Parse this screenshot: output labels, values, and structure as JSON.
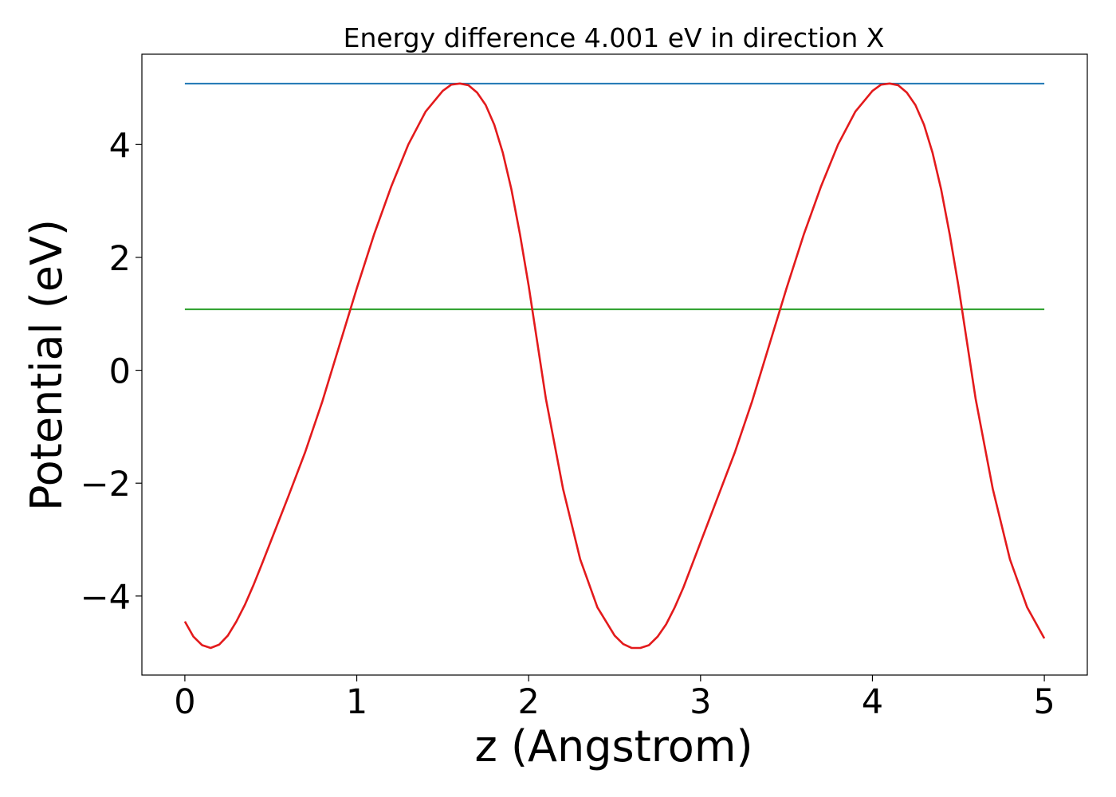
{
  "chart_data": {
    "type": "line",
    "title": "Energy difference 4.001 eV in direction X",
    "xlabel": "z (Angstrom)",
    "ylabel": "Potential (eV)",
    "xlim": [
      -0.25,
      5.25
    ],
    "ylim": [
      -5.4,
      5.6
    ],
    "xticks": [
      0,
      1,
      2,
      3,
      4,
      5
    ],
    "xtick_labels": [
      "0",
      "1",
      "2",
      "3",
      "4",
      "5"
    ],
    "yticks": [
      -4,
      -2,
      0,
      2,
      4
    ],
    "ytick_labels": [
      "−4",
      "−2",
      "0",
      "2",
      "4"
    ],
    "grid": false,
    "colors": {
      "potential": "#e31a1c",
      "max_line": "#1f77b4",
      "mean_line": "#2ca02c"
    },
    "series": [
      {
        "role": "potential",
        "x": [
          0,
          0.05,
          0.1,
          0.15,
          0.2,
          0.25,
          0.3,
          0.35,
          0.4,
          0.45,
          0.5,
          0.6,
          0.7,
          0.8,
          0.9,
          1.0,
          1.1,
          1.2,
          1.3,
          1.4,
          1.5,
          1.55,
          1.6,
          1.65,
          1.7,
          1.75,
          1.8,
          1.85,
          1.9,
          1.95,
          2.0,
          2.05,
          2.1,
          2.2,
          2.3,
          2.4,
          2.5,
          2.55,
          2.6,
          2.65,
          2.7,
          2.75,
          2.8,
          2.85,
          2.9,
          3.0,
          3.1,
          3.2,
          3.3,
          3.4,
          3.5,
          3.6,
          3.7,
          3.8,
          3.9,
          4.0,
          4.05,
          4.1,
          4.15,
          4.2,
          4.25,
          4.3,
          4.35,
          4.4,
          4.45,
          4.5,
          4.55,
          4.6,
          4.7,
          4.8,
          4.9,
          5.0
        ],
        "y": [
          -4.45,
          -4.72,
          -4.87,
          -4.92,
          -4.86,
          -4.7,
          -4.45,
          -4.15,
          -3.8,
          -3.42,
          -3.03,
          -2.25,
          -1.45,
          -0.55,
          0.45,
          1.45,
          2.4,
          3.25,
          4.0,
          4.58,
          4.95,
          5.06,
          5.08,
          5.05,
          4.92,
          4.7,
          4.35,
          3.85,
          3.2,
          2.4,
          1.5,
          0.5,
          -0.5,
          -2.1,
          -3.35,
          -4.2,
          -4.7,
          -4.85,
          -4.92,
          -4.92,
          -4.87,
          -4.72,
          -4.5,
          -4.2,
          -3.85,
          -3.05,
          -2.25,
          -1.45,
          -0.55,
          0.45,
          1.45,
          2.4,
          3.25,
          4.0,
          4.58,
          4.95,
          5.06,
          5.08,
          5.05,
          4.92,
          4.7,
          4.35,
          3.85,
          3.2,
          2.4,
          1.5,
          0.5,
          -0.5,
          -2.1,
          -3.35,
          -4.2,
          -4.75
        ]
      },
      {
        "role": "max_line",
        "x": [
          0,
          5.0
        ],
        "y": [
          5.08,
          5.08
        ]
      },
      {
        "role": "mean_line",
        "x": [
          0,
          5.0
        ],
        "y": [
          1.08,
          1.08
        ]
      }
    ]
  }
}
